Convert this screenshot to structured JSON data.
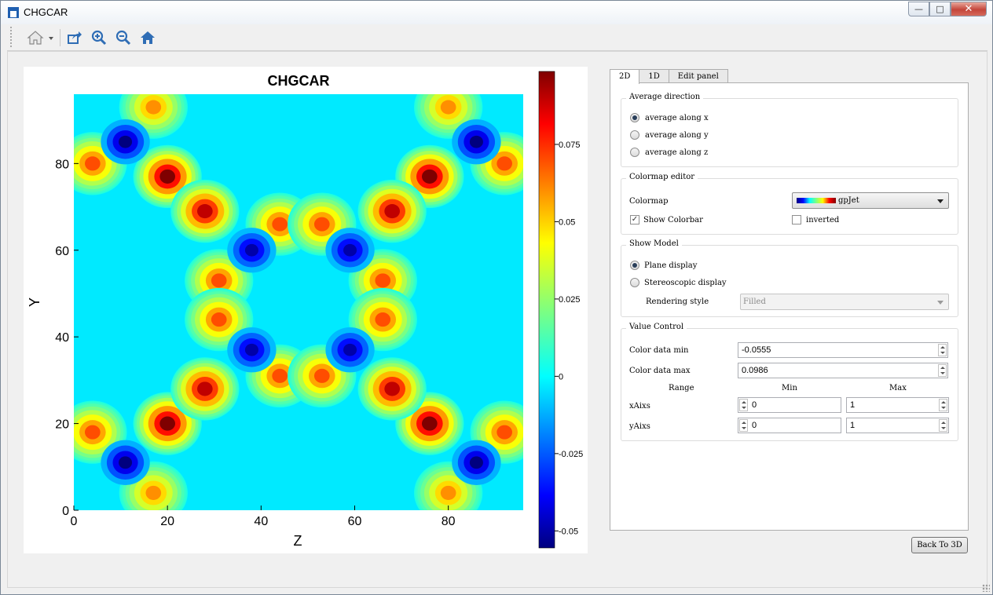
{
  "window": {
    "title": "CHGCAR",
    "controls": [
      "minimize-icon",
      "maximize-icon",
      "close-icon"
    ]
  },
  "toolbar": {
    "buttons": [
      {
        "name": "home-menu-icon",
        "tooltip": ""
      },
      {
        "name": "export-icon"
      },
      {
        "name": "zoom-in-icon"
      },
      {
        "name": "zoom-out-icon"
      },
      {
        "name": "home-icon"
      }
    ]
  },
  "chart_data": {
    "type": "heatmap",
    "title": "CHGCAR",
    "xlabel": "Z",
    "ylabel": "Y",
    "xlim": [
      0,
      96
    ],
    "ylim": [
      0,
      96
    ],
    "xticks": [
      "0",
      "20",
      "40",
      "60",
      "80"
    ],
    "yticks": [
      "0",
      "20",
      "40",
      "60",
      "80"
    ],
    "colormap": "gpJet",
    "color_range": [
      -0.0555,
      0.0986
    ],
    "colorbar_ticks": [
      "0.075",
      "0.05",
      "0.025",
      "0",
      "-0.025",
      "-0.05"
    ],
    "hotspots": [
      {
        "x": 20,
        "y": 77,
        "v": 0.0986
      },
      {
        "x": 28,
        "y": 69,
        "v": 0.09
      },
      {
        "x": 76,
        "y": 77,
        "v": 0.0986
      },
      {
        "x": 68,
        "y": 69,
        "v": 0.09
      },
      {
        "x": 20,
        "y": 20,
        "v": 0.0986
      },
      {
        "x": 28,
        "y": 28,
        "v": 0.09
      },
      {
        "x": 76,
        "y": 20,
        "v": 0.0986
      },
      {
        "x": 68,
        "y": 28,
        "v": 0.09
      },
      {
        "x": 4,
        "y": 80,
        "v": 0.07
      },
      {
        "x": 92,
        "y": 80,
        "v": 0.07
      },
      {
        "x": 4,
        "y": 18,
        "v": 0.07
      },
      {
        "x": 92,
        "y": 18,
        "v": 0.07
      },
      {
        "x": 17,
        "y": 93,
        "v": 0.06
      },
      {
        "x": 80,
        "y": 93,
        "v": 0.06
      },
      {
        "x": 17,
        "y": 4,
        "v": 0.06
      },
      {
        "x": 80,
        "y": 4,
        "v": 0.06
      },
      {
        "x": 44,
        "y": 66,
        "v": 0.07
      },
      {
        "x": 53,
        "y": 66,
        "v": 0.07
      },
      {
        "x": 44,
        "y": 31,
        "v": 0.07
      },
      {
        "x": 53,
        "y": 31,
        "v": 0.07
      },
      {
        "x": 31,
        "y": 53,
        "v": 0.07
      },
      {
        "x": 31,
        "y": 44,
        "v": 0.07
      },
      {
        "x": 66,
        "y": 53,
        "v": 0.07
      },
      {
        "x": 66,
        "y": 44,
        "v": 0.07
      },
      {
        "x": 11,
        "y": 85,
        "v": -0.0555
      },
      {
        "x": 86,
        "y": 85,
        "v": -0.0555
      },
      {
        "x": 11,
        "y": 11,
        "v": -0.0555
      },
      {
        "x": 86,
        "y": 11,
        "v": -0.0555
      },
      {
        "x": 38,
        "y": 60,
        "v": -0.05
      },
      {
        "x": 59,
        "y": 60,
        "v": -0.05
      },
      {
        "x": 38,
        "y": 37,
        "v": -0.05
      },
      {
        "x": 59,
        "y": 37,
        "v": -0.05
      }
    ]
  },
  "tabs": {
    "items": [
      "2D",
      "1D",
      "Edit panel"
    ],
    "active": "2D"
  },
  "average_direction": {
    "title": "Average direction",
    "options": [
      "average along x",
      "average along y",
      "average along z"
    ],
    "selected": "average along x"
  },
  "colormap_editor": {
    "title": "Colormap editor",
    "colormap_label": "Colormap",
    "colormap_value": "gpJet",
    "show_colorbar_label": "Show Colorbar",
    "show_colorbar_checked": true,
    "inverted_label": "inverted",
    "inverted_checked": false
  },
  "show_model": {
    "title": "Show Model",
    "options": [
      "Plane display",
      "Stereoscopic display"
    ],
    "selected": "Plane display",
    "rendering_label": "Rendering style",
    "rendering_value": "Filled"
  },
  "value_control": {
    "title": "Value Control",
    "min_label": "Color data min",
    "min_value": "-0.0555",
    "max_label": "Color data max",
    "max_value": "0.0986",
    "range_header": "Range",
    "min_header": "Min",
    "max_header": "Max",
    "xaxis_label": "xAixs",
    "xaxis_min": "0",
    "xaxis_max": "1",
    "yaxis_label": "yAixs",
    "yaxis_min": "0",
    "yaxis_max": "1"
  },
  "footer": {
    "back_label": "Back To 3D"
  }
}
